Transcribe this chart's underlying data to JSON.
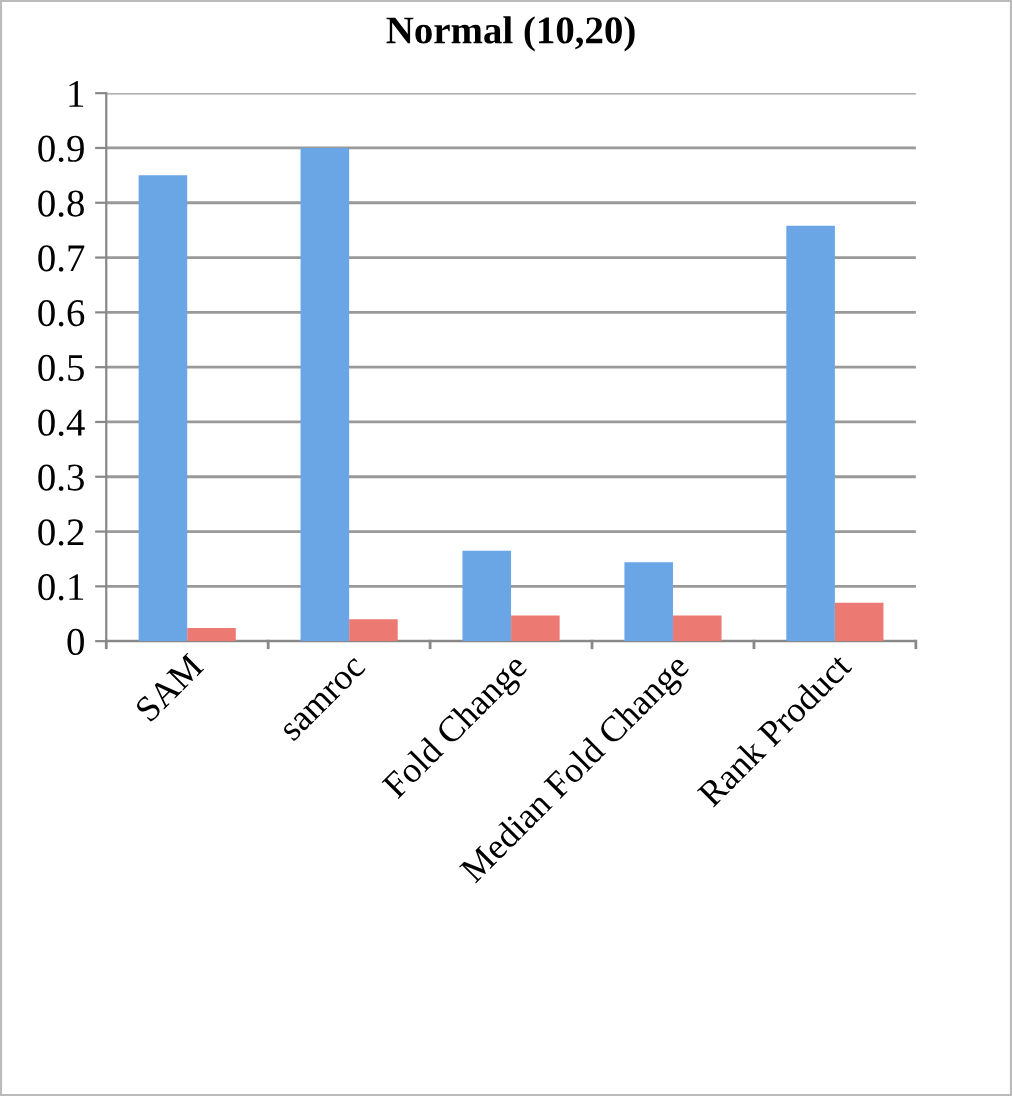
{
  "chart_data": {
    "type": "bar",
    "title": "Normal (10,20)",
    "categories": [
      "SAM",
      "samroc",
      "Fold Change",
      "Median Fold Change",
      "Rank Product"
    ],
    "series": [
      {
        "color": "#6aa6e6",
        "values": [
          0.85,
          0.9,
          0.165,
          0.144,
          0.758
        ]
      },
      {
        "color": "#ec7a72",
        "values": [
          0.024,
          0.04,
          0.047,
          0.047,
          0.07
        ]
      }
    ],
    "ylim": [
      0,
      1
    ],
    "yticks": [
      0,
      0.1,
      0.2,
      0.3,
      0.4,
      0.5,
      0.6,
      0.7,
      0.8,
      0.9,
      1
    ],
    "grid": "y",
    "legend": false
  }
}
